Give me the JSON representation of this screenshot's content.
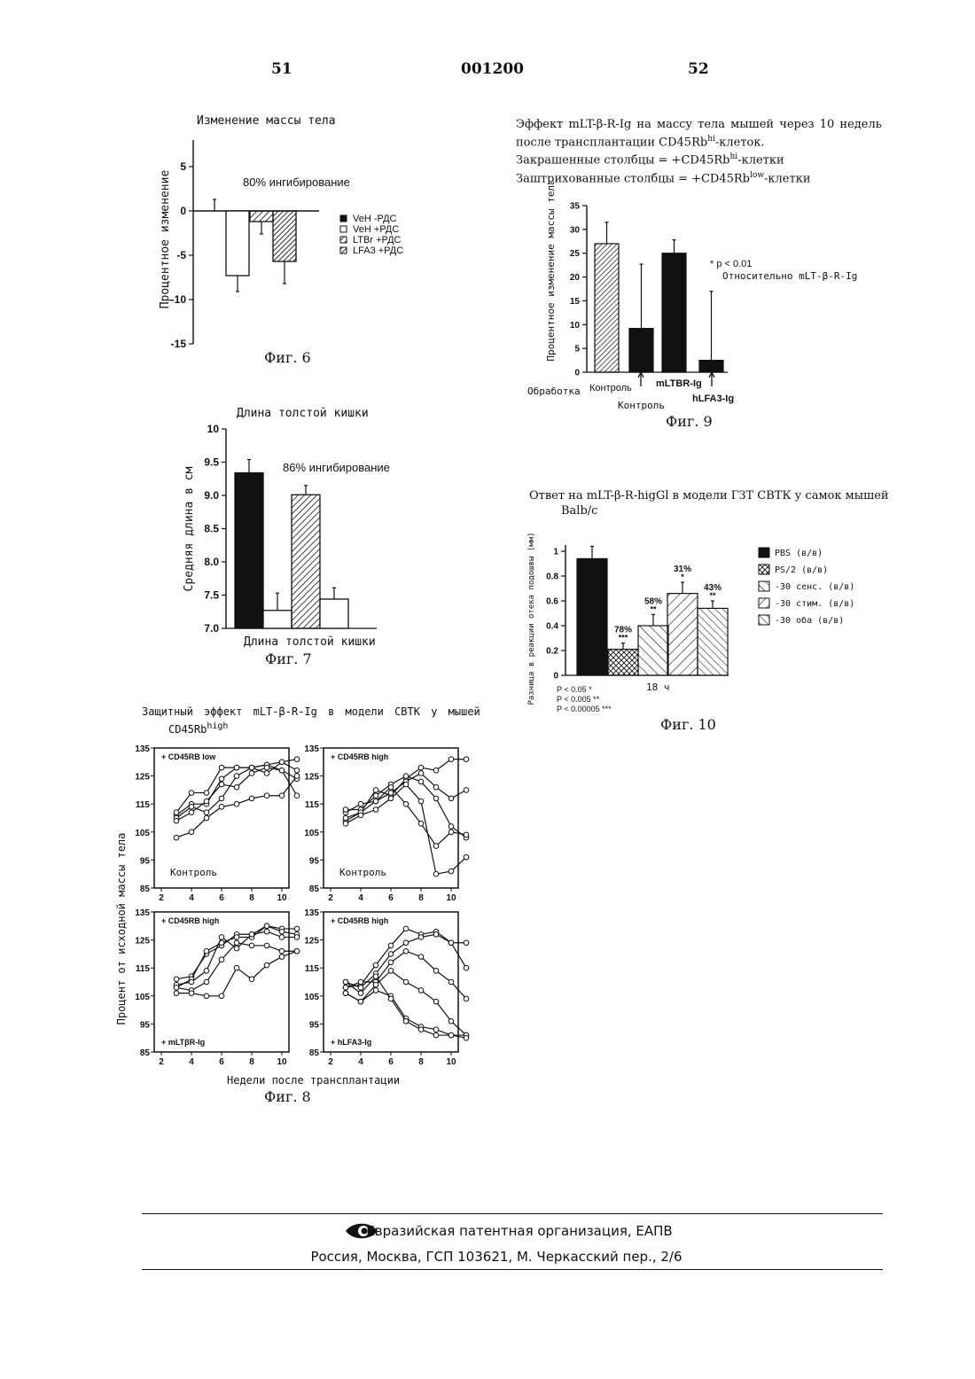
{
  "header": {
    "left_page": "51",
    "doc_number": "001200",
    "right_page": "52"
  },
  "fig6": {
    "label": "Фиг. 6",
    "annotation": "80% ингибирование",
    "chart_data": {
      "type": "bar",
      "title": "Изменение массы тела",
      "ylabel": "Процентное изменение",
      "categories": [
        "VeH -РДС",
        "VeH +РДС",
        "LTBr +РДС",
        "LFA3 +РДС"
      ],
      "values": [
        0,
        -7.3,
        -1.2,
        -5.7
      ],
      "errors": [
        1.3,
        1.8,
        1.4,
        2.5
      ],
      "ylim": [
        -15,
        8
      ],
      "yticks": [
        "5",
        "0",
        "-5",
        "-10",
        "-15"
      ],
      "legend": "right",
      "fills": [
        "solid-black",
        "white",
        "hatched",
        "dense-hatched"
      ]
    }
  },
  "fig7": {
    "label": "Фиг. 7",
    "annotation": "86% ингибирование",
    "chart_data": {
      "type": "bar",
      "title": "Длина толстой кишки",
      "xlabel": "Длина толстой кишки",
      "ylabel": "Средняя длина в см",
      "values": [
        9.34,
        7.27,
        9.01,
        7.44
      ],
      "errors": [
        0.2,
        0.26,
        0.14,
        0.17
      ],
      "ylim": [
        7.0,
        10.0
      ],
      "yticks": [
        "10",
        "9.5",
        "9.0",
        "8.5",
        "8.0",
        "7.5",
        "7.0"
      ],
      "fills": [
        "solid-black",
        "white",
        "hatched",
        "white"
      ]
    }
  },
  "fig8": {
    "label": "Фиг. 8",
    "title_line1": "Защитный эффект mLT-β-R-Ig в модели СВТК у мышей",
    "title_line2_main": "CD45Rb",
    "title_line2_sup": "high",
    "chart_data": {
      "type": "line",
      "xlabel": "Недели после трансплантации",
      "ylabel": "Процент от исходной массы тела",
      "xlim": [
        2,
        10
      ],
      "ylim": [
        85,
        135
      ],
      "xticks": [
        "2",
        "4",
        "6",
        "8",
        "10"
      ],
      "yticks": [
        "135",
        "125",
        "115",
        "105",
        "95",
        "85"
      ],
      "panels": [
        {
          "tag": "+ CD45RB low",
          "note": "Контроль",
          "series": [
            [
              111,
              115,
              115,
              124,
              128,
              128,
              129,
              130,
              131
            ],
            [
              112,
              119,
              119,
              128,
              128,
              128,
              126,
              130,
              127
            ],
            [
              110,
              114,
              112,
              117,
              125,
              128,
              129,
              127,
              124
            ],
            [
              109,
              112,
              116,
              122,
              121,
              126,
              128,
              127,
              118
            ],
            [
              103,
              105,
              110,
              114,
              115,
              117,
              118,
              118,
              125
            ]
          ]
        },
        {
          "tag": "+ CD45RB high",
          "note": "Контроль",
          "series": [
            [
              109,
              112,
              120,
              118,
              124,
              128,
              127,
              131,
              131
            ],
            [
              112,
              115,
              116,
              119,
              123,
              126,
              121,
              117,
              120
            ],
            [
              113,
              113,
              118,
              122,
              125,
              123,
              117,
              107,
              103
            ],
            [
              110,
              112,
              116,
              121,
              115,
              108,
              100,
              105,
              104
            ],
            [
              108,
              111,
              113,
              117,
              122,
              116,
              90,
              91,
              96
            ]
          ]
        },
        {
          "tag": "+ CD45RB high",
          "note": "+ mLTβR-Ig",
          "series": [
            [
              111,
              112,
              120,
              123,
              127,
              127,
              130,
              129,
              129
            ],
            [
              108,
              111,
              121,
              124,
              126,
              126,
              130,
              128,
              127
            ],
            [
              109,
              110,
              114,
              126,
              122,
              127,
              128,
              126,
              126
            ],
            [
              108,
              107,
              110,
              118,
              124,
              123,
              123,
              121,
              121
            ],
            [
              106,
              106,
              105,
              105,
              115,
              111,
              116,
              119,
              121
            ]
          ]
        },
        {
          "tag": "+ CD45RB high",
          "note": "+ hLFA3-Ig",
          "series": [
            [
              108,
              109,
              116,
              123,
              129,
              127,
              128,
              124,
              124
            ],
            [
              110,
              108,
              113,
              120,
              124,
              126,
              127,
              124,
              115
            ],
            [
              108,
              110,
              110,
              117,
              121,
              119,
              114,
              110,
              104
            ],
            [
              106,
              103,
              109,
              114,
              110,
              107,
              103,
              96,
              91
            ],
            [
              106,
              103,
              107,
              105,
              97,
              94,
              93,
              91,
              91
            ],
            [
              110,
              106,
              112,
              104,
              96,
              93,
              91,
              91,
              90
            ]
          ]
        }
      ]
    }
  },
  "fig9": {
    "label": "Фиг. 9",
    "caption_line1": "Эффект mLT-β-R-Ig на массу тела мышей через 10 недель",
    "caption_line2_pre": "после трансплантации CD45Rb",
    "caption_line2_sup": "hi",
    "caption_line2_post": "-клеток.",
    "caption_line3_pre": "Закрашенные столбцы = +CD45Rb",
    "caption_line3_sup": "hi",
    "caption_line3_post": "-клетки",
    "caption_line4_pre": "Заштрихованные столбцы = +CD45Rb",
    "caption_line4_sup": "low",
    "caption_line4_post": "-клетки",
    "significance_line1": "* p < 0.01",
    "significance_line2": "Относительно mLT-β-R-Ig",
    "treatment_label": "Обработка",
    "chart_data": {
      "type": "bar",
      "ylabel": "Процентное изменение массы тела",
      "categories": [
        "Контроль",
        "Контроль",
        "mLTBR-Ig",
        "hLFA3-Ig"
      ],
      "values": [
        27,
        9.2,
        25,
        2.5
      ],
      "errors": [
        4.5,
        13.5,
        2.8,
        14.5
      ],
      "ylim": [
        0,
        35
      ],
      "yticks": [
        "35",
        "30",
        "25",
        "20",
        "15",
        "10",
        "5",
        "0"
      ],
      "fills": [
        "hatched",
        "solid-black",
        "solid-black",
        "solid-black"
      ]
    }
  },
  "fig10": {
    "label": "Фиг. 10",
    "caption_line1": "Ответ на mLT-β-R-higGl в модели ГЗТ СВТК у самок мышей",
    "caption_line2": "Balb/c",
    "time_label": "18 ч",
    "pvals": [
      "P < 0.05 *",
      "P < 0.005 **",
      "P < 0.00005 ***"
    ],
    "chart_data": {
      "type": "bar",
      "ylabel": "Разница в реакции отека подошвы (мм)",
      "categories": [
        "PBS (в/в)",
        "PS/2 (в/в)",
        "-30 сенс. (в/в)",
        "-30 стим. (в/в)",
        "-30 оба (в/в)"
      ],
      "values": [
        0.94,
        0.21,
        0.4,
        0.66,
        0.54
      ],
      "errors": [
        0.1,
        0.05,
        0.09,
        0.09,
        0.06
      ],
      "bar_labels": [
        "",
        "78%",
        "58%",
        "31%",
        "43%"
      ],
      "bar_stars": [
        "",
        "***",
        "**",
        "*",
        "**"
      ],
      "ylim": [
        0,
        1.05
      ],
      "yticks": [
        "1",
        "0.8",
        "0.6",
        "0.4",
        "0.2",
        "0"
      ],
      "legend": "right",
      "fills": [
        "solid-black",
        "cross-hatched",
        "wide-back-hatched",
        "wide-hatched",
        "fine-back-hatched"
      ]
    }
  },
  "footer": {
    "org": "Евразийская патентная организация, ЕАПВ",
    "address": "Россия, Москва, ГСП 103621, М. Черкасский пер., 2/6"
  }
}
